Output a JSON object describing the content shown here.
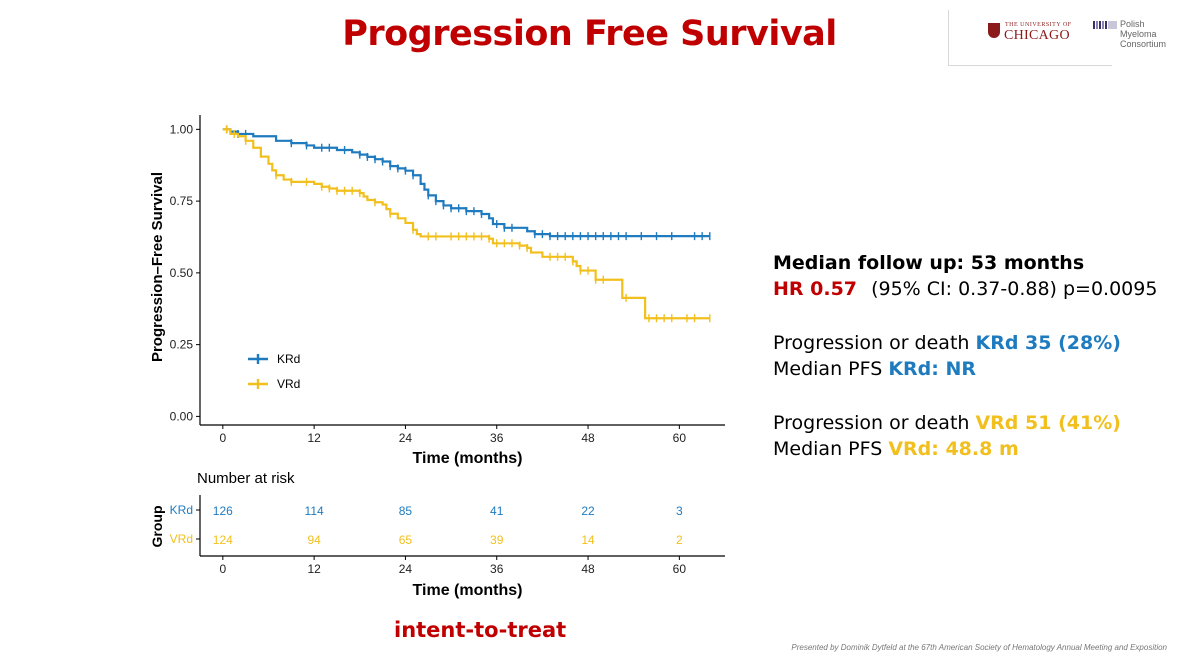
{
  "slide": {
    "title": "Progression Free Survival",
    "subtitle": "intent-to-treat",
    "footer": "Presented by Dominik Dytfeld at the 67th American Society of Hematology Annual Meeting and Exposition"
  },
  "logos": {
    "uchicago_small": "THE UNIVERSITY OF",
    "uchicago_big": "CHICAGO",
    "pmc_lines": [
      "Polish",
      "Myeloma",
      "Consortium"
    ]
  },
  "colors": {
    "krd": "#1f7bbf",
    "vrd": "#f2c01e",
    "accent": "#c00000"
  },
  "chart_data": {
    "type": "line",
    "title": "",
    "xlabel": "Time (months)",
    "ylabel": "Progression–Free Survival",
    "xlim": [
      -3,
      66
    ],
    "ylim": [
      -0.03,
      1.05
    ],
    "x_ticks": [
      0,
      12,
      24,
      36,
      48,
      60
    ],
    "y_ticks": [
      0.0,
      0.25,
      0.5,
      0.75,
      1.0
    ],
    "y_tick_labels": [
      "0.00",
      "0.25",
      "0.50",
      "0.75",
      "1.00"
    ],
    "grid": false,
    "legend": {
      "position": "bottom-left",
      "entries": [
        "KRd",
        "VRd"
      ]
    },
    "series": [
      {
        "name": "KRd",
        "color": "#1f7bbf",
        "points": [
          [
            0,
            1.0
          ],
          [
            1,
            0.992
          ],
          [
            2,
            0.984
          ],
          [
            4,
            0.976
          ],
          [
            7,
            0.96
          ],
          [
            9,
            0.952
          ],
          [
            11,
            0.944
          ],
          [
            12,
            0.936
          ],
          [
            15,
            0.928
          ],
          [
            17,
            0.92
          ],
          [
            18,
            0.912
          ],
          [
            19,
            0.904
          ],
          [
            20,
            0.896
          ],
          [
            21,
            0.888
          ],
          [
            22,
            0.872
          ],
          [
            23,
            0.864
          ],
          [
            24,
            0.856
          ],
          [
            25,
            0.84
          ],
          [
            26,
            0.81
          ],
          [
            26.5,
            0.79
          ],
          [
            27,
            0.77
          ],
          [
            28,
            0.75
          ],
          [
            29,
            0.735
          ],
          [
            30,
            0.725
          ],
          [
            32,
            0.715
          ],
          [
            34,
            0.705
          ],
          [
            35,
            0.69
          ],
          [
            35.5,
            0.67
          ],
          [
            37,
            0.657
          ],
          [
            40,
            0.645
          ],
          [
            41,
            0.635
          ],
          [
            43,
            0.628
          ],
          [
            64,
            0.628
          ]
        ],
        "censor_x": [
          0.5,
          2,
          3,
          9,
          11,
          13,
          14,
          16,
          18,
          19,
          20,
          21,
          22,
          23,
          24,
          25,
          27,
          28,
          29,
          30,
          31,
          32,
          33,
          34,
          36,
          37,
          38,
          41,
          42,
          43,
          44,
          45,
          46,
          47,
          48,
          49,
          50,
          51,
          52,
          53,
          55,
          57,
          59,
          62,
          63,
          64
        ]
      },
      {
        "name": "VRd",
        "color": "#f2c01e",
        "points": [
          [
            0,
            1.0
          ],
          [
            1,
            0.984
          ],
          [
            2,
            0.976
          ],
          [
            3,
            0.96
          ],
          [
            4,
            0.936
          ],
          [
            5,
            0.905
          ],
          [
            6,
            0.88
          ],
          [
            6.5,
            0.857
          ],
          [
            7,
            0.84
          ],
          [
            8,
            0.825
          ],
          [
            9,
            0.817
          ],
          [
            12,
            0.81
          ],
          [
            13,
            0.8
          ],
          [
            14,
            0.794
          ],
          [
            15,
            0.786
          ],
          [
            18,
            0.778
          ],
          [
            18.5,
            0.766
          ],
          [
            19,
            0.754
          ],
          [
            20,
            0.746
          ],
          [
            21,
            0.738
          ],
          [
            21.5,
            0.722
          ],
          [
            22,
            0.706
          ],
          [
            23,
            0.69
          ],
          [
            24,
            0.674
          ],
          [
            25,
            0.65
          ],
          [
            25.5,
            0.635
          ],
          [
            26,
            0.627
          ],
          [
            35,
            0.619
          ],
          [
            35.5,
            0.603
          ],
          [
            39,
            0.595
          ],
          [
            40,
            0.587
          ],
          [
            40.5,
            0.571
          ],
          [
            42,
            0.556
          ],
          [
            46,
            0.54
          ],
          [
            46.5,
            0.524
          ],
          [
            47,
            0.508
          ],
          [
            49,
            0.476
          ],
          [
            52,
            0.476
          ],
          [
            52.5,
            0.413
          ],
          [
            55,
            0.413
          ],
          [
            55.5,
            0.342
          ],
          [
            64,
            0.342
          ]
        ],
        "censor_x": [
          0.5,
          1.5,
          3,
          7,
          9,
          11,
          13,
          14,
          15,
          16,
          17,
          18,
          20,
          22,
          25,
          27,
          28,
          30,
          31,
          32,
          33,
          34,
          35,
          36,
          37,
          38,
          39,
          40,
          43,
          44,
          45,
          46,
          47,
          48,
          49,
          50,
          53,
          56,
          57,
          58,
          59,
          61,
          62,
          64
        ]
      }
    ],
    "risk_table": {
      "title": "Number at risk",
      "row_axis_label": "Group",
      "xlabel": "Time (months)",
      "times": [
        0,
        12,
        24,
        36,
        48,
        60
      ],
      "rows": [
        {
          "name": "KRd",
          "values": [
            126,
            114,
            85,
            41,
            22,
            3
          ]
        },
        {
          "name": "VRd",
          "values": [
            124,
            94,
            65,
            39,
            14,
            2
          ]
        }
      ]
    }
  },
  "stats": {
    "follow_up": "Median follow up: 53 months",
    "hr_label": "HR 0.57",
    "hr_ci": "(95% CI: 0.37-0.88) p=0.0095",
    "krd_event_prefix": "Progression or death ",
    "krd_event_value": "KRd 35 (28%)",
    "krd_median_prefix": "Median PFS ",
    "krd_median_value": "KRd: NR",
    "vrd_event_prefix": "Progression or death ",
    "vrd_event_value": "VRd 51 (41%)",
    "vrd_median_prefix": "Median PFS ",
    "vrd_median_value": "VRd: 48.8 m"
  }
}
